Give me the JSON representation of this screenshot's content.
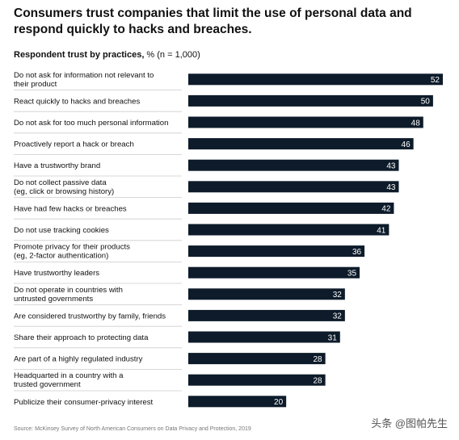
{
  "title": "Consumers trust companies that limit the use of personal data and respond quickly to hacks and breaches.",
  "subtitle": {
    "bold": "Respondent trust by practices,",
    "rest": " % (n = 1,000)"
  },
  "source": "Source: McKinsey Survey of North American Consumers on Data Privacy and Protection, 2019",
  "watermark": "头条 @图帕先生",
  "colors": {
    "bar": "#0d1b2a",
    "divider": "#cccccc",
    "label": "#111111",
    "value": "#ffffff"
  },
  "chart_data": {
    "type": "bar",
    "orientation": "horizontal",
    "title": "Consumers trust companies that limit the use of personal data and respond quickly to hacks and breaches.",
    "subtitle": "Respondent trust by practices, % (n = 1,000)",
    "categories": [
      [
        "Do not ask for information not relevant to",
        "their product"
      ],
      [
        "React quickly to hacks and breaches"
      ],
      [
        "Do not ask for too much personal information"
      ],
      [
        "Proactively report a hack or breach"
      ],
      [
        "Have a trustworthy brand"
      ],
      [
        "Do not collect passive data",
        "(eg, click or browsing history)"
      ],
      [
        "Have had few hacks or breaches"
      ],
      [
        "Do not use tracking cookies"
      ],
      [
        "Promote privacy for their products",
        "(eg, 2-factor authentication)"
      ],
      [
        "Have trustworthy leaders"
      ],
      [
        "Do not operate in countries with",
        "untrusted governments"
      ],
      [
        "Are considered trustworthy by family, friends"
      ],
      [
        "Share their approach to protecting data"
      ],
      [
        "Are part of a highly regulated industry"
      ],
      [
        "Headquarted in a country with a",
        "trusted government"
      ],
      [
        "Publicize their consumer-privacy interest"
      ]
    ],
    "values": [
      52,
      50,
      48,
      46,
      43,
      43,
      42,
      41,
      36,
      35,
      32,
      32,
      31,
      28,
      28,
      20
    ],
    "xlim": [
      0,
      52
    ],
    "grid": false,
    "legend": "none"
  }
}
